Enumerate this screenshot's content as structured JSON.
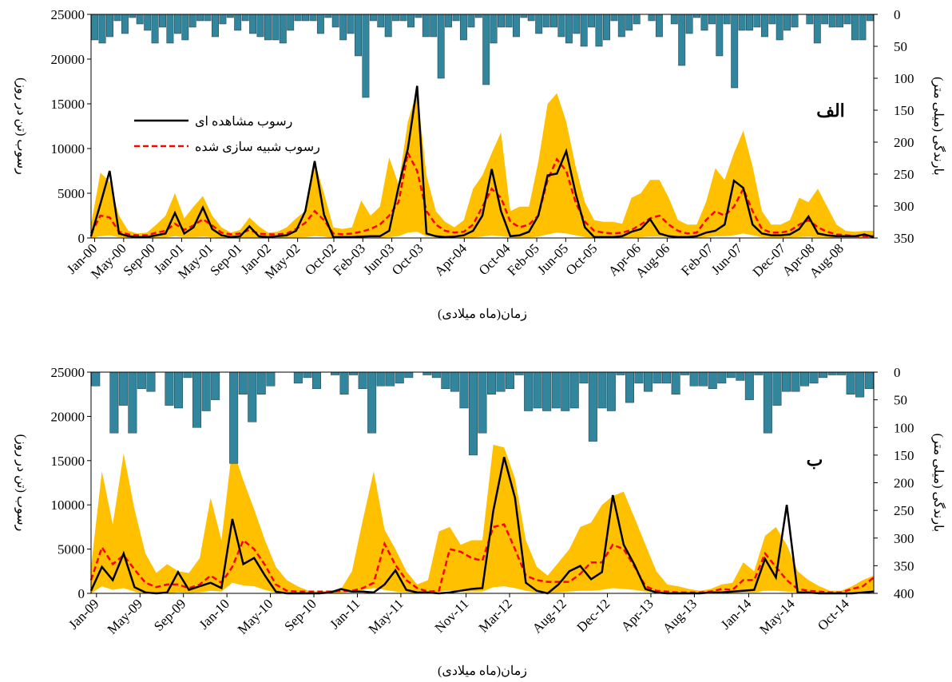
{
  "chart_data": [
    {
      "type": "line",
      "panel_label": "الف",
      "xlabel": "زمان(ماه میلادی)",
      "ylabel": "رسوب (تن در روز)",
      "y2label": "بارندگی (میلی متر)",
      "ylim": [
        0,
        25000
      ],
      "yticks": [
        0,
        5000,
        10000,
        15000,
        20000,
        25000
      ],
      "y2lim": [
        0,
        350
      ],
      "y2ticks": [
        0,
        50,
        100,
        150,
        200,
        250,
        300,
        350
      ],
      "y2_inverted": true,
      "x_start": "Jan-00",
      "x_end": "Dec-08",
      "xtick_labels": [
        "Jan-00",
        "May-00",
        "Sep-00",
        "Jan-01",
        "May-01",
        "Sep-01",
        "Jan-02",
        "May-02",
        "Oct-02",
        "Feb-03",
        "Jun-03",
        "Oct-03",
        "Apr-04",
        "Oct-04",
        "Feb-05",
        "Jun-05",
        "Oct-05",
        "Apr-06",
        "Aug-06",
        "Feb-07",
        "Jun-07",
        "Dec-07",
        "Apr-08",
        "Aug-08"
      ],
      "legend": {
        "position": "upper-left",
        "observed": "رسوب مشاهده ای",
        "simulated": "رسوب شبیه سازی شده"
      },
      "colors": {
        "observed": "#000000",
        "simulated": "#ff0000",
        "band": "#ffc000",
        "rain": "#31859c"
      },
      "series": [
        {
          "name": "رسوب مشاهده ای",
          "key": "observed",
          "values": [
            200,
            3800,
            7500,
            500,
            200,
            100,
            100,
            300,
            500,
            2800,
            500,
            1200,
            3400,
            1000,
            300,
            100,
            200,
            1300,
            200,
            100,
            200,
            300,
            800,
            3000,
            8600,
            2600,
            100,
            100,
            100,
            150,
            200,
            200,
            800,
            5700,
            10000,
            17000,
            500,
            200,
            100,
            150,
            300,
            800,
            2500,
            7700,
            3000,
            200,
            300,
            700,
            2500,
            7000,
            7200,
            9700,
            5000,
            1200,
            100,
            100,
            100,
            200,
            700,
            1000,
            2100,
            500,
            200,
            100,
            100,
            200,
            600,
            800,
            1500,
            6400,
            5600,
            1500,
            500,
            300,
            300,
            400,
            1000,
            2400,
            500,
            300,
            200,
            200,
            200,
            400,
            100
          ]
        },
        {
          "name": "رسوب شبیه سازی شده",
          "key": "simulated",
          "values": [
            500,
            2500,
            2300,
            700,
            400,
            300,
            300,
            600,
            800,
            1600,
            900,
            1400,
            2100,
            1400,
            600,
            400,
            500,
            900,
            500,
            400,
            400,
            500,
            1000,
            1700,
            3000,
            2000,
            500,
            400,
            500,
            700,
            1000,
            1500,
            2500,
            4000,
            9500,
            7500,
            3000,
            1500,
            800,
            600,
            700,
            1500,
            3500,
            5500,
            4500,
            1800,
            1200,
            1500,
            2500,
            6500,
            8800,
            7500,
            4000,
            1800,
            800,
            600,
            500,
            600,
            900,
            1500,
            2200,
            2500,
            1500,
            800,
            500,
            600,
            2000,
            3000,
            2500,
            3500,
            5500,
            3000,
            1000,
            600,
            600,
            800,
            1500,
            2000,
            1200,
            700,
            400,
            300,
            200,
            200,
            200
          ]
        },
        {
          "name": "band_upper",
          "key": "band_upper",
          "values": [
            1500,
            7300,
            6300,
            2500,
            800,
            500,
            600,
            1500,
            2500,
            5000,
            2200,
            3500,
            4700,
            2500,
            1200,
            600,
            900,
            2300,
            1300,
            600,
            700,
            1200,
            2200,
            3000,
            8500,
            5000,
            1200,
            1000,
            1200,
            4200,
            2500,
            3500,
            9000,
            6000,
            13000,
            16500,
            7000,
            3000,
            1800,
            1200,
            2000,
            5500,
            7000,
            9500,
            11800,
            3000,
            3500,
            3500,
            8500,
            15000,
            16200,
            13000,
            8000,
            4000,
            2000,
            1800,
            1800,
            1600,
            4500,
            5000,
            6500,
            6500,
            4500,
            2000,
            1500,
            1500,
            4000,
            7800,
            6500,
            9500,
            12000,
            8000,
            3000,
            1500,
            1500,
            2000,
            4500,
            4000,
            5500,
            3500,
            1500,
            800,
            700,
            800,
            800
          ]
        },
        {
          "name": "band_lower",
          "key": "band_lower",
          "values": [
            0,
            200,
            300,
            100,
            50,
            0,
            0,
            0,
            50,
            200,
            100,
            100,
            150,
            100,
            0,
            0,
            0,
            50,
            0,
            0,
            0,
            0,
            50,
            100,
            200,
            150,
            0,
            0,
            0,
            0,
            0,
            0,
            100,
            200,
            600,
            700,
            200,
            100,
            0,
            0,
            0,
            50,
            150,
            300,
            200,
            100,
            50,
            50,
            150,
            400,
            600,
            500,
            300,
            100,
            50,
            0,
            0,
            0,
            50,
            100,
            150,
            150,
            100,
            50,
            0,
            0,
            100,
            200,
            200,
            300,
            500,
            300,
            100,
            50,
            50,
            50,
            100,
            150,
            100,
            50,
            0,
            0,
            0,
            0,
            0
          ]
        },
        {
          "name": "بارندگی",
          "key": "rain",
          "values": [
            40,
            45,
            35,
            10,
            30,
            5,
            15,
            25,
            45,
            20,
            45,
            30,
            40,
            20,
            10,
            10,
            35,
            15,
            5,
            25,
            10,
            30,
            35,
            40,
            40,
            45,
            25,
            10,
            10,
            10,
            30,
            5,
            20,
            40,
            30,
            65,
            130,
            10,
            20,
            35,
            10,
            10,
            20,
            5,
            35,
            35,
            100,
            20,
            10,
            40,
            20,
            5,
            110,
            45,
            20,
            20,
            35,
            5,
            10,
            30,
            20,
            20,
            35,
            45,
            30,
            50,
            20,
            50,
            40,
            10,
            35,
            25,
            15,
            0,
            10,
            35,
            0,
            15,
            80,
            30,
            5,
            25,
            15,
            65,
            15,
            115,
            25,
            25,
            20,
            35,
            15,
            40,
            25,
            20,
            0,
            15,
            45,
            15,
            20,
            20,
            15,
            40,
            40,
            10
          ]
        }
      ]
    },
    {
      "type": "line",
      "panel_label": "ب",
      "xlabel": "زمان(ماه میلادی)",
      "ylabel": "رسوب (تن در روز)",
      "y2label": "بارندگی (میلی متر)",
      "ylim": [
        0,
        25000
      ],
      "yticks": [
        0,
        5000,
        10000,
        15000,
        20000,
        25000
      ],
      "y2lim": [
        0,
        400
      ],
      "y2ticks": [
        0,
        50,
        100,
        150,
        200,
        250,
        300,
        350,
        400
      ],
      "y2_inverted": true,
      "x_start": "Jan-09",
      "x_end": "Dec-14",
      "xtick_labels": [
        "Jan-09",
        "May-09",
        "Sep-09",
        "Jan-10",
        "May-10",
        "Sep-10",
        "Jan-11",
        "May-11",
        "Nov-11",
        "Mar-12",
        "Aug-12",
        "Dec-12",
        "Apr-13",
        "Aug-13",
        "Jan-14",
        "May-14",
        "Oct-14"
      ],
      "colors": {
        "observed": "#000000",
        "simulated": "#ff0000",
        "band": "#ffc000",
        "rain": "#31859c"
      },
      "series": [
        {
          "name": "رسوب مشاهده ای",
          "key": "observed",
          "values": [
            300,
            3000,
            1500,
            4500,
            700,
            100,
            0,
            100,
            2400,
            400,
            800,
            1200,
            600,
            8400,
            3300,
            4000,
            2000,
            200,
            0,
            0,
            0,
            0,
            100,
            500,
            200,
            200,
            100,
            1000,
            2600,
            400,
            100,
            100,
            0,
            100,
            300,
            500,
            600,
            9300,
            15400,
            10800,
            1200,
            300,
            0,
            1000,
            2500,
            3100,
            1600,
            2400,
            11100,
            5500,
            3200,
            500,
            100,
            0,
            0,
            0,
            0,
            100,
            100,
            200,
            300,
            400,
            3900,
            1800,
            10000,
            100,
            100,
            0,
            0,
            0,
            0,
            100,
            200
          ]
        },
        {
          "name": "رسوب شبیه سازی شده",
          "key": "simulated",
          "values": [
            1500,
            5200,
            3300,
            4300,
            2700,
            1200,
            700,
            1000,
            1000,
            600,
            1000,
            2000,
            1200,
            3000,
            6000,
            5000,
            3200,
            1000,
            300,
            200,
            200,
            200,
            200,
            300,
            300,
            600,
            1200,
            5600,
            3200,
            1500,
            600,
            200,
            300,
            5000,
            4700,
            4000,
            3700,
            7500,
            7800,
            5000,
            2000,
            1500,
            1300,
            1300,
            1300,
            2200,
            3500,
            3500,
            5500,
            5000,
            3000,
            800,
            300,
            200,
            100,
            100,
            100,
            200,
            500,
            400,
            1500,
            1500,
            4500,
            3000,
            1500,
            500,
            300,
            200,
            100,
            100,
            500,
            800,
            1800
          ]
        },
        {
          "name": "band_upper",
          "key": "band_upper",
          "values": [
            3000,
            13800,
            7800,
            15800,
            9500,
            4500,
            2300,
            3300,
            2500,
            2300,
            4000,
            10800,
            6000,
            16500,
            12800,
            9500,
            6000,
            3000,
            1500,
            800,
            300,
            200,
            300,
            500,
            2500,
            8300,
            13800,
            7200,
            5000,
            2500,
            1000,
            1500,
            7000,
            7500,
            5500,
            6000,
            6000,
            16800,
            16500,
            13000,
            6000,
            3000,
            2000,
            3500,
            5000,
            7500,
            8000,
            10000,
            11000,
            11500,
            8500,
            5500,
            2500,
            1000,
            800,
            500,
            300,
            500,
            1000,
            1200,
            3500,
            2500,
            6500,
            7500,
            5500,
            2500,
            1500,
            800,
            300,
            300,
            800,
            1500,
            2000
          ]
        },
        {
          "name": "band_lower",
          "key": "band_lower",
          "values": [
            0,
            800,
            400,
            600,
            200,
            0,
            0,
            0,
            100,
            50,
            100,
            300,
            200,
            1200,
            900,
            800,
            400,
            50,
            0,
            0,
            0,
            0,
            0,
            50,
            100,
            400,
            600,
            400,
            200,
            100,
            0,
            0,
            200,
            300,
            200,
            200,
            200,
            700,
            800,
            600,
            300,
            100,
            50,
            100,
            200,
            300,
            300,
            400,
            600,
            500,
            400,
            200,
            50,
            0,
            0,
            0,
            0,
            0,
            0,
            50,
            100,
            100,
            300,
            300,
            200,
            100,
            50,
            0,
            0,
            0,
            0,
            50,
            100
          ]
        },
        {
          "name": "بارندگی",
          "key": "rain",
          "values": [
            25,
            0,
            110,
            60,
            110,
            30,
            35,
            0,
            60,
            65,
            10,
            100,
            70,
            50,
            0,
            165,
            40,
            90,
            40,
            25,
            0,
            0,
            20,
            10,
            30,
            0,
            5,
            40,
            5,
            30,
            110,
            25,
            25,
            20,
            10,
            0,
            5,
            10,
            30,
            35,
            65,
            150,
            110,
            40,
            35,
            30,
            5,
            70,
            65,
            70,
            65,
            70,
            65,
            20,
            125,
            65,
            70,
            5,
            55,
            20,
            35,
            20,
            20,
            40,
            5,
            25,
            25,
            30,
            20,
            10,
            15,
            50,
            5,
            110,
            60,
            35,
            35,
            25,
            20,
            10,
            5,
            5,
            40,
            45,
            30
          ]
        }
      ]
    }
  ]
}
